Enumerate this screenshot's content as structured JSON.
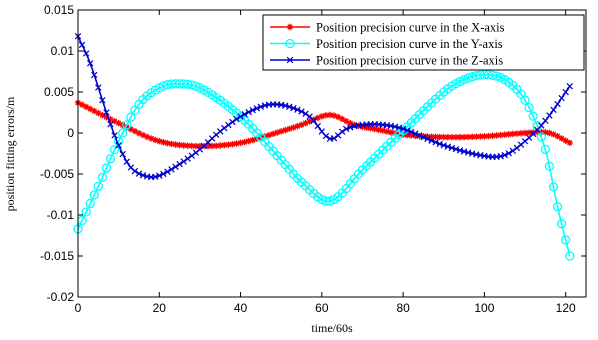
{
  "chart_data": {
    "type": "line",
    "title": "",
    "xlabel": "time/60s",
    "ylabel": "position fitting errors/m",
    "xlim": [
      0,
      125
    ],
    "ylim": [
      -0.02,
      0.015
    ],
    "xticks": [
      "0",
      "20",
      "40",
      "60",
      "80",
      "100",
      "120"
    ],
    "yticks": [
      "0.015",
      "0.01",
      "0.005",
      "0",
      "-0.005",
      "-0.01",
      "-0.015",
      "-0.02"
    ],
    "legend_position": "top-right",
    "series": [
      {
        "name": "Position precision curve in the X-axis",
        "color": "#ff0000",
        "marker": "star",
        "x": [
          0,
          10,
          20,
          30,
          40,
          50,
          55,
          62,
          68,
          75,
          80,
          90,
          100,
          110,
          116,
          121
        ],
        "y": [
          0.0037,
          0.0012,
          -0.001,
          -0.0016,
          -0.0012,
          0.0002,
          0.001,
          0.0022,
          0.001,
          0.0003,
          -0.0002,
          -0.0005,
          -0.0004,
          0.0,
          0.0,
          -0.0012
        ]
      },
      {
        "name": "Position precision curve in the Y-axis",
        "color": "#00ffff",
        "marker": "circle",
        "x": [
          0,
          5,
          10,
          15,
          20,
          24,
          30,
          40,
          50,
          55,
          62,
          70,
          80,
          90,
          95,
          100,
          105,
          110,
          115,
          118,
          121
        ],
        "y": [
          -0.0117,
          -0.0065,
          -0.001,
          0.0035,
          0.0055,
          0.006,
          0.0055,
          0.002,
          -0.0033,
          -0.006,
          -0.0083,
          -0.0045,
          0.0003,
          0.005,
          0.0065,
          0.0071,
          0.0065,
          0.004,
          -0.002,
          -0.009,
          -0.015
        ]
      },
      {
        "name": "Position precision curve in the Z-axis",
        "color": "#0000cc",
        "marker": "x",
        "x": [
          0,
          3,
          7,
          10,
          13,
          17,
          20,
          25,
          30,
          35,
          40,
          45,
          48,
          52,
          57,
          62,
          66,
          70,
          75,
          80,
          90,
          100,
          105,
          110,
          115,
          121
        ],
        "y": [
          0.0118,
          0.0085,
          0.0025,
          -0.0015,
          -0.0042,
          -0.0053,
          -0.0052,
          -0.0038,
          -0.002,
          0.0002,
          0.002,
          0.0032,
          0.0035,
          0.0032,
          0.002,
          -0.0007,
          0.0005,
          0.001,
          0.001,
          0.0005,
          -0.0015,
          -0.0028,
          -0.0027,
          -0.001,
          0.0015,
          0.0057
        ]
      }
    ]
  }
}
